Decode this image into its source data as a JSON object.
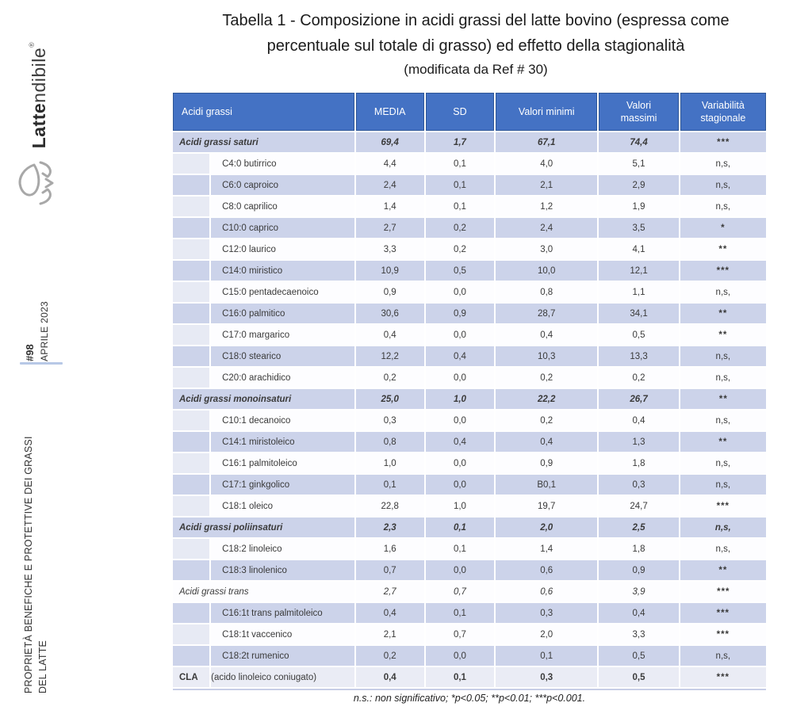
{
  "sidebar": {
    "logo": {
      "brand_bold": "Latte",
      "brand_light": "ndibile",
      "registered": "®"
    },
    "issue_number": "#98",
    "issue_date": "APRILE 2023",
    "section_title_line1": "PROPRIETÀ BENEFICHE E PROTETTIVE DEI GRASSI",
    "section_title_line2": "DEL LATTE"
  },
  "title": {
    "line1": "Tabella 1 -  Composizione in acidi grassi del latte bovino (espressa come",
    "line2": "percentuale sul totale di grasso) ed effetto della stagionalità",
    "line3": "(modificata da Ref # 30)"
  },
  "table": {
    "columns": [
      "Acidi grassi",
      "MEDIA",
      "SD",
      "Valori minimi",
      "Valori massimi",
      "Variabilità stagionale"
    ],
    "rows": [
      {
        "type": "section",
        "label": "Acidi grassi saturi",
        "media": "69,4",
        "sd": "1,7",
        "min": "67,1",
        "max": "74,4",
        "var": "***"
      },
      {
        "type": "sub",
        "label": "C4:0 butirrico",
        "media": "4,4",
        "sd": "0,1",
        "min": "4,0",
        "max": "5,1",
        "var": "n,s,"
      },
      {
        "type": "sub",
        "label": "C6:0 caproico",
        "media": "2,4",
        "sd": "0,1",
        "min": "2,1",
        "max": "2,9",
        "var": "n,s,"
      },
      {
        "type": "sub",
        "label": "C8:0 caprilico",
        "media": "1,4",
        "sd": "0,1",
        "min": "1,2",
        "max": "1,9",
        "var": "n,s,"
      },
      {
        "type": "sub",
        "label": "C10:0 caprico",
        "media": "2,7",
        "sd": "0,2",
        "min": "2,4",
        "max": "3,5",
        "var": "*"
      },
      {
        "type": "sub",
        "label": "C12:0 laurico",
        "media": "3,3",
        "sd": "0,2",
        "min": "3,0",
        "max": "4,1",
        "var": "**"
      },
      {
        "type": "sub",
        "label": "C14:0 miristico",
        "media": "10,9",
        "sd": "0,5",
        "min": "10,0",
        "max": "12,1",
        "var": "***"
      },
      {
        "type": "sub",
        "label": "C15:0 pentadecaenoico",
        "media": "0,9",
        "sd": "0,0",
        "min": "0,8",
        "max": "1,1",
        "var": "n,s,"
      },
      {
        "type": "sub",
        "label": "C16:0 palmitico",
        "media": "30,6",
        "sd": "0,9",
        "min": "28,7",
        "max": "34,1",
        "var": "**"
      },
      {
        "type": "sub",
        "label": "C17:0 margarico",
        "media": "0,4",
        "sd": "0,0",
        "min": "0,4",
        "max": "0,5",
        "var": "**"
      },
      {
        "type": "sub",
        "label": "C18:0 stearico",
        "media": "12,2",
        "sd": "0,4",
        "min": "10,3",
        "max": "13,3",
        "var": "n,s,"
      },
      {
        "type": "sub",
        "label": "C20:0 arachidico",
        "media": "0,2",
        "sd": "0,0",
        "min": "0,2",
        "max": "0,2",
        "var": "n,s,"
      },
      {
        "type": "section",
        "label": "Acidi grassi monoinsaturi",
        "media": "25,0",
        "sd": "1,0",
        "min": "22,2",
        "max": "26,7",
        "var": "**"
      },
      {
        "type": "sub",
        "label": "C10:1 decanoico",
        "media": "0,3",
        "sd": "0,0",
        "min": "0,2",
        "max": "0,4",
        "var": "n,s,"
      },
      {
        "type": "sub",
        "label": "C14:1 miristoleico",
        "media": "0,8",
        "sd": "0,4",
        "min": "0,4",
        "max": "1,3",
        "var": "**"
      },
      {
        "type": "sub",
        "label": "C16:1 palmitoleico",
        "media": "1,0",
        "sd": "0,0",
        "min": "0,9",
        "max": "1,8",
        "var": "n,s,"
      },
      {
        "type": "sub",
        "label": "C17:1 ginkgolico",
        "media": "0,1",
        "sd": "0,0",
        "min": "B0,1",
        "max": "0,3",
        "var": "n,s,"
      },
      {
        "type": "sub",
        "label": "C18:1 oleico",
        "media": "22,8",
        "sd": "1,0",
        "min": "19,7",
        "max": "24,7",
        "var": "***"
      },
      {
        "type": "section",
        "label": "Acidi grassi poliinsaturi",
        "media": "2,3",
        "sd": "0,1",
        "min": "2,0",
        "max": "2,5",
        "var": "n,s,"
      },
      {
        "type": "sub",
        "label": "C18:2 linoleico",
        "media": "1,6",
        "sd": "0,1",
        "min": "1,4",
        "max": "1,8",
        "var": "n,s,"
      },
      {
        "type": "sub",
        "label": "C18:3 linolenico",
        "media": "0,7",
        "sd": "0,0",
        "min": "0,6",
        "max": "0,9",
        "var": "**"
      },
      {
        "type": "section-light",
        "label": "Acidi grassi trans",
        "media": "2,7",
        "sd": "0,7",
        "min": "0,6",
        "max": "3,9",
        "var": "***"
      },
      {
        "type": "sub",
        "label": "C16:1t trans palmitoleico",
        "media": "0,4",
        "sd": "0,1",
        "min": "0,3",
        "max": "0,4",
        "var": "***"
      },
      {
        "type": "sub",
        "label": "C18:1t vaccenico",
        "media": "2,1",
        "sd": "0,7",
        "min": "2,0",
        "max": "3,3",
        "var": "***"
      },
      {
        "type": "sub",
        "label": "C18:2t rumenico",
        "media": "0,2",
        "sd": "0,0",
        "min": "0,1",
        "max": "0,5",
        "var": "n,s,"
      },
      {
        "type": "cla",
        "prefix": "CLA",
        "label": "(acido linoleico coniugato)",
        "media": "0,4",
        "sd": "0,1",
        "min": "0,3",
        "max": "0,5",
        "var": "***"
      }
    ],
    "footnote": "n.s.: non significativo; *p<0.05; **p<0.01; ***p<0.001."
  },
  "colors": {
    "header_bg": "#4472C4",
    "header_border": "#2E5697",
    "band_row": "#CCD3EA",
    "plain_row": "#FDFDFF",
    "strip_plain": "#E7EAF4",
    "cla_row": "#EAECF5",
    "text_dark": "#3A3A3A",
    "divider_blue": "#B7C8E6",
    "table_bottom_border": "#C7CEE6"
  }
}
